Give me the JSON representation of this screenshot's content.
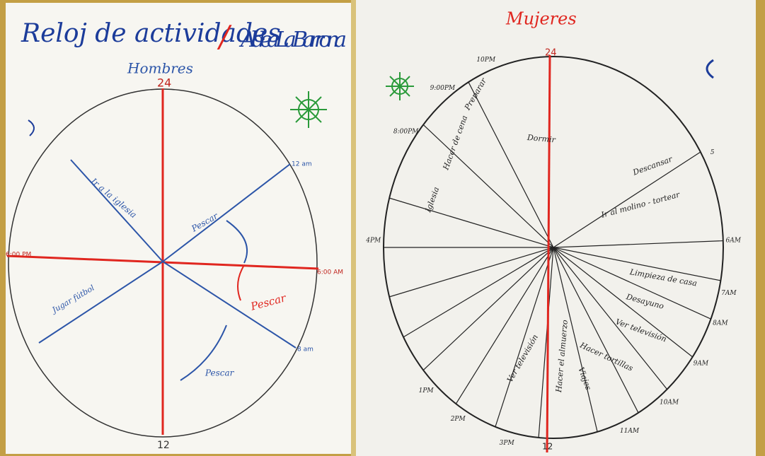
{
  "left_poster": {
    "title": "Reloj de actividades",
    "separator": "/",
    "place": "Aldea La Barrona",
    "group": "Hombres",
    "labels": {
      "top": "24",
      "bottom": "12",
      "left": "6:00 PM",
      "right": "6:00 AM",
      "upper_right": "12 am",
      "lower_right": "8 am"
    },
    "activities": [
      "Ir a la iglesia",
      "Pescar",
      "Jugar fútbol",
      "Pescar",
      "Pescar"
    ]
  },
  "right_poster": {
    "heading": "Mujeres",
    "labels": {
      "top": "24",
      "bottom": "12",
      "times": [
        "10PM",
        "9:00PM",
        "8:00PM",
        "4PM",
        "5",
        "6AM",
        "7AM",
        "8AM",
        "9AM",
        "10AM",
        "11AM",
        "3PM",
        "2PM",
        "1PM"
      ]
    },
    "activities": [
      "Dormir",
      "Descansar",
      "Ir al molino - tortear",
      "Limpieza de casa",
      "Desayuno",
      "Ver televisión",
      "Hacer tortillas",
      "Iglesia",
      "Hacer de cena",
      "Preparar",
      "Viajes",
      "Hacer el almuerzo",
      "Ver televisión"
    ]
  }
}
